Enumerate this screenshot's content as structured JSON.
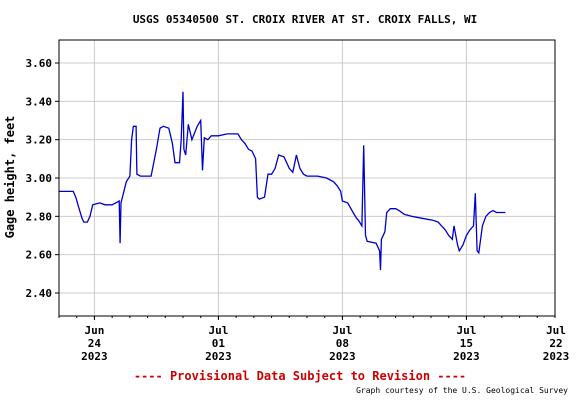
{
  "chart_data": {
    "type": "line",
    "title": "USGS 05340500 ST. CROIX RIVER AT ST. CROIX FALLS, WI",
    "ylabel": "Gage height, feet",
    "xlabel": "",
    "ylim": [
      2.28,
      3.72
    ],
    "yticks": [
      2.4,
      2.6,
      2.8,
      3.0,
      3.2,
      3.4,
      3.6
    ],
    "ytick_labels": [
      "2.40",
      "2.60",
      "2.80",
      "3.00",
      "3.20",
      "3.40",
      "3.60"
    ],
    "xlim_days": [
      22.0,
      50.0
    ],
    "xticks": [
      {
        "day": 24,
        "line1": "Jun",
        "line2": "24",
        "line3": "2023"
      },
      {
        "day": 31,
        "line1": "Jul",
        "line2": "01",
        "line3": "2023"
      },
      {
        "day": 38,
        "line1": "Jul",
        "line2": "08",
        "line3": "2023"
      },
      {
        "day": 45,
        "line1": "Jul",
        "line2": "15",
        "line3": "2023"
      },
      {
        "day": 52,
        "line1": "Jul",
        "line2": "22",
        "line3": "2023"
      }
    ],
    "grid": true,
    "series": [
      {
        "color": "#0000cc",
        "points": [
          [
            22.0,
            2.93
          ],
          [
            22.8,
            2.93
          ],
          [
            22.95,
            2.9
          ],
          [
            23.1,
            2.85
          ],
          [
            23.3,
            2.79
          ],
          [
            23.4,
            2.77
          ],
          [
            23.6,
            2.77
          ],
          [
            23.75,
            2.8
          ],
          [
            23.9,
            2.86
          ],
          [
            24.3,
            2.87
          ],
          [
            24.6,
            2.86
          ],
          [
            25.0,
            2.86
          ],
          [
            25.2,
            2.87
          ],
          [
            25.4,
            2.88
          ],
          [
            25.45,
            2.66
          ],
          [
            25.5,
            2.87
          ],
          [
            25.8,
            2.98
          ],
          [
            26.0,
            3.01
          ],
          [
            26.1,
            3.2
          ],
          [
            26.2,
            3.27
          ],
          [
            26.35,
            3.27
          ],
          [
            26.4,
            3.02
          ],
          [
            26.6,
            3.01
          ],
          [
            27.2,
            3.01
          ],
          [
            27.5,
            3.15
          ],
          [
            27.7,
            3.26
          ],
          [
            27.9,
            3.27
          ],
          [
            28.2,
            3.26
          ],
          [
            28.4,
            3.18
          ],
          [
            28.55,
            3.08
          ],
          [
            28.8,
            3.08
          ],
          [
            28.9,
            3.2
          ],
          [
            29.0,
            3.45
          ],
          [
            29.05,
            3.15
          ],
          [
            29.15,
            3.12
          ],
          [
            29.3,
            3.28
          ],
          [
            29.5,
            3.2
          ],
          [
            29.8,
            3.27
          ],
          [
            30.0,
            3.3
          ],
          [
            30.1,
            3.04
          ],
          [
            30.2,
            3.21
          ],
          [
            30.4,
            3.2
          ],
          [
            30.6,
            3.22
          ],
          [
            31.0,
            3.22
          ],
          [
            31.5,
            3.23
          ],
          [
            32.1,
            3.23
          ],
          [
            32.3,
            3.2
          ],
          [
            32.5,
            3.18
          ],
          [
            32.7,
            3.15
          ],
          [
            32.9,
            3.14
          ],
          [
            33.1,
            3.1
          ],
          [
            33.2,
            2.9
          ],
          [
            33.3,
            2.89
          ],
          [
            33.6,
            2.9
          ],
          [
            33.8,
            3.02
          ],
          [
            34.0,
            3.02
          ],
          [
            34.2,
            3.05
          ],
          [
            34.4,
            3.12
          ],
          [
            34.7,
            3.11
          ],
          [
            35.0,
            3.05
          ],
          [
            35.2,
            3.03
          ],
          [
            35.4,
            3.12
          ],
          [
            35.6,
            3.05
          ],
          [
            35.8,
            3.02
          ],
          [
            36.0,
            3.01
          ],
          [
            36.6,
            3.01
          ],
          [
            37.1,
            3.0
          ],
          [
            37.5,
            2.98
          ],
          [
            37.7,
            2.96
          ],
          [
            37.9,
            2.93
          ],
          [
            38.0,
            2.88
          ],
          [
            38.3,
            2.87
          ],
          [
            38.6,
            2.82
          ],
          [
            38.8,
            2.79
          ],
          [
            38.9,
            2.78
          ],
          [
            39.1,
            2.75
          ],
          [
            39.2,
            3.17
          ],
          [
            39.3,
            2.7
          ],
          [
            39.4,
            2.67
          ],
          [
            39.9,
            2.66
          ],
          [
            40.1,
            2.62
          ],
          [
            40.15,
            2.52
          ],
          [
            40.2,
            2.68
          ],
          [
            40.4,
            2.72
          ],
          [
            40.5,
            2.82
          ],
          [
            40.7,
            2.84
          ],
          [
            41.0,
            2.84
          ],
          [
            41.2,
            2.83
          ],
          [
            41.5,
            2.81
          ],
          [
            41.9,
            2.8
          ],
          [
            42.5,
            2.79
          ],
          [
            43.1,
            2.78
          ],
          [
            43.4,
            2.77
          ],
          [
            43.6,
            2.75
          ],
          [
            43.8,
            2.73
          ],
          [
            44.0,
            2.7
          ],
          [
            44.2,
            2.68
          ],
          [
            44.3,
            2.75
          ],
          [
            44.5,
            2.65
          ],
          [
            44.6,
            2.62
          ],
          [
            44.8,
            2.65
          ],
          [
            45.0,
            2.7
          ],
          [
            45.2,
            2.73
          ],
          [
            45.4,
            2.75
          ],
          [
            45.5,
            2.92
          ],
          [
            45.6,
            2.62
          ],
          [
            45.7,
            2.61
          ],
          [
            45.9,
            2.75
          ],
          [
            46.1,
            2.8
          ],
          [
            46.3,
            2.82
          ],
          [
            46.5,
            2.83
          ],
          [
            46.7,
            2.82
          ],
          [
            47.2,
            2.82
          ]
        ]
      }
    ],
    "footer": {
      "provisional": "---- Provisional Data Subject to Revision ----",
      "credit": "Graph courtesy of the U.S. Geological Survey"
    },
    "colors": {
      "line": "#0000cc",
      "grid": "#cccccc",
      "provisional": "#cc0000",
      "axis": "#000000"
    }
  }
}
